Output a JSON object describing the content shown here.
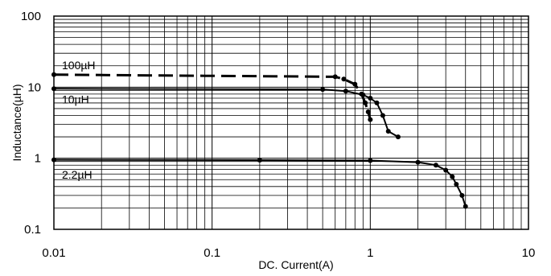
{
  "chart_data": {
    "type": "line",
    "xlabel": "DC. Current(A)",
    "ylabel": "Inductance(µH)",
    "x_scale": "log",
    "y_scale": "log",
    "xlim": [
      0.01,
      10
    ],
    "ylim": [
      0.1,
      100
    ],
    "x_ticks": [
      "0.01",
      "0.1",
      "1",
      "10"
    ],
    "y_ticks": [
      "100",
      "10",
      "1",
      "0.1"
    ],
    "grid": true,
    "series": [
      {
        "name": "100µH",
        "line_style": "dashed",
        "color": "#000000",
        "x": [
          0.01,
          0.6,
          0.68,
          0.8,
          0.88,
          0.93,
          0.97,
          1.0
        ],
        "y": [
          15,
          14,
          13,
          11,
          8,
          6,
          4.5,
          3.5
        ]
      },
      {
        "name": "10µH",
        "line_style": "solid",
        "color": "#000000",
        "x": [
          0.01,
          0.5,
          0.7,
          0.9,
          1.0,
          1.1,
          1.2,
          1.3,
          1.5
        ],
        "y": [
          9.5,
          9.3,
          8.8,
          7.8,
          7.0,
          6.0,
          4.0,
          2.4,
          2.0
        ]
      },
      {
        "name": "2.2µH",
        "line_style": "solid",
        "color": "#000000",
        "x": [
          0.01,
          0.2,
          1.0,
          2.0,
          2.6,
          3.0,
          3.3,
          3.5,
          3.8,
          4.0
        ],
        "y": [
          0.95,
          0.94,
          0.93,
          0.88,
          0.8,
          0.68,
          0.55,
          0.43,
          0.3,
          0.21
        ]
      }
    ]
  }
}
